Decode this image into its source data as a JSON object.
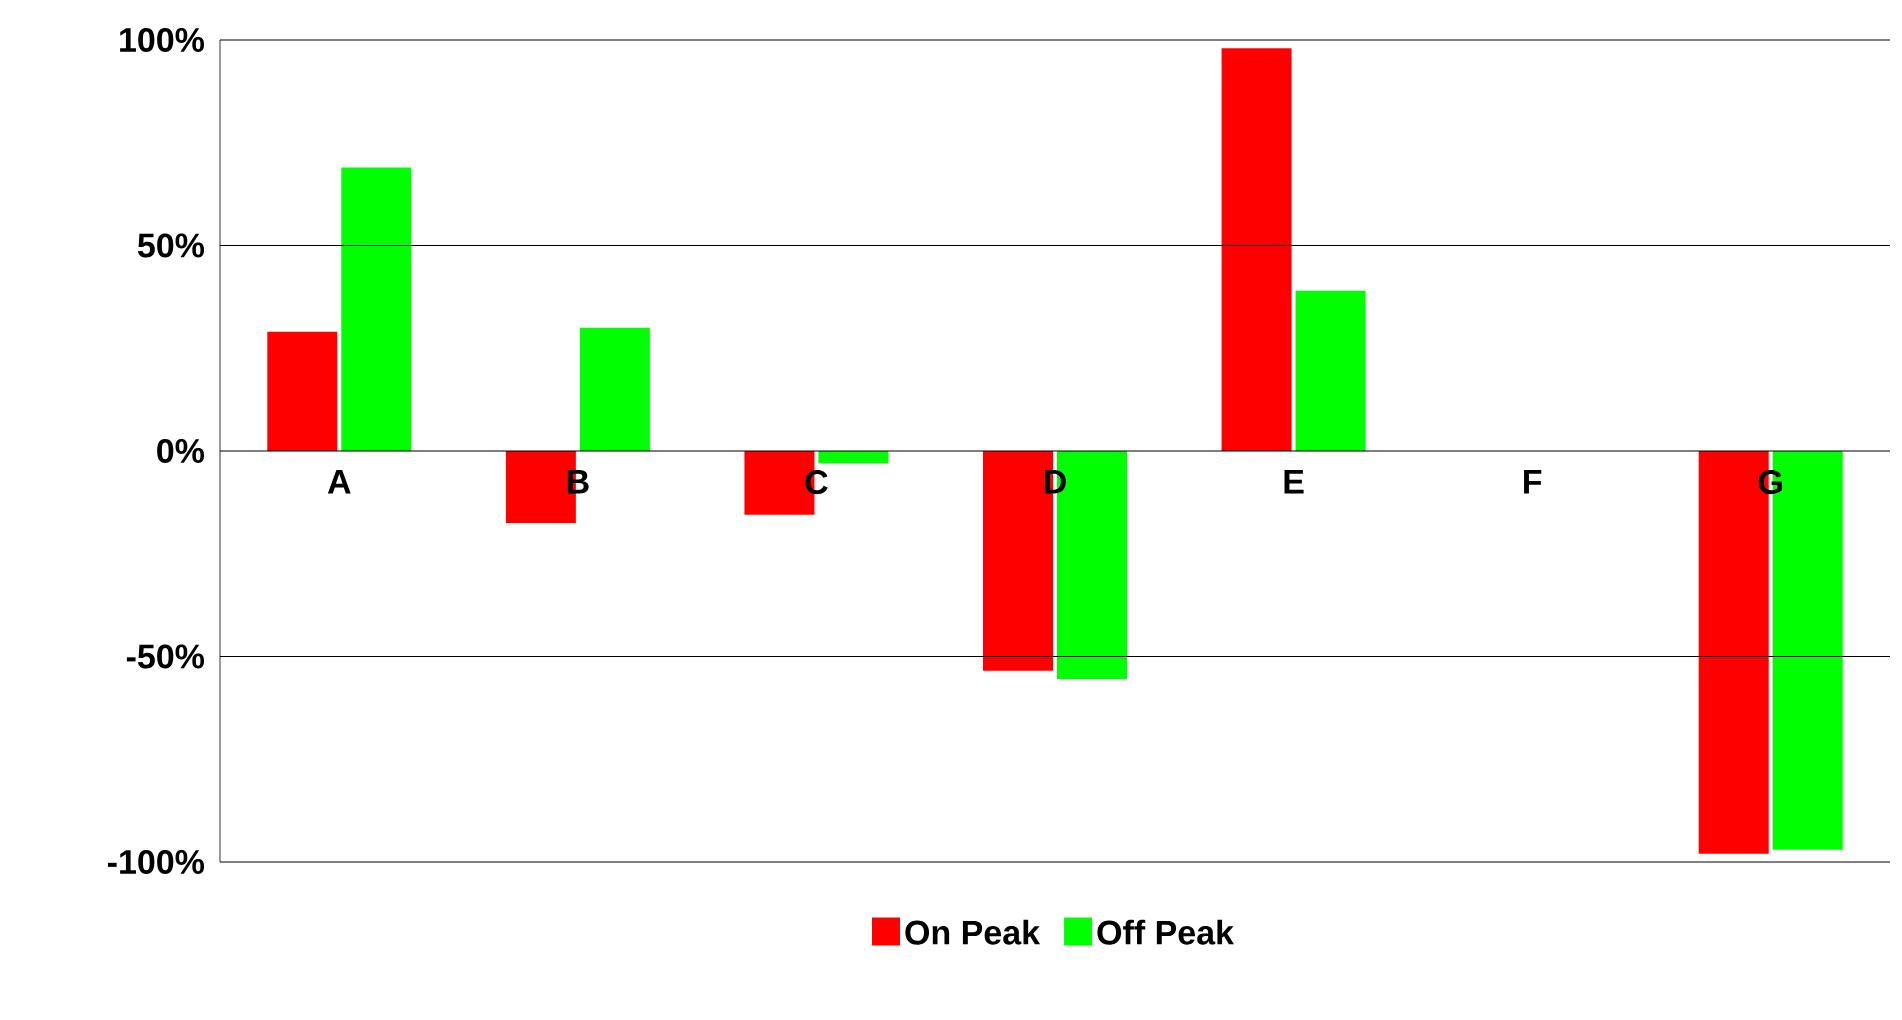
{
  "chart_data": {
    "type": "bar",
    "categories": [
      "A",
      "B",
      "C",
      "D",
      "E",
      "F",
      "G"
    ],
    "series": [
      {
        "name": "On Peak",
        "color": "#ff0000",
        "values": [
          29,
          -17.5,
          -15.5,
          -53.5,
          98,
          null,
          -98
        ]
      },
      {
        "name": "Off Peak",
        "color": "#00ff00",
        "values": [
          69,
          30,
          -3,
          -55.5,
          39,
          null,
          -97
        ]
      }
    ],
    "ylim": [
      -100,
      100
    ],
    "yticks": [
      {
        "value": -100,
        "label": "-100%"
      },
      {
        "value": -50,
        "label": "-50%"
      },
      {
        "value": 0,
        "label": "0%"
      },
      {
        "value": 50,
        "label": "50%"
      },
      {
        "value": 100,
        "label": "100%"
      }
    ],
    "grid": "y",
    "legend": "bottom"
  }
}
